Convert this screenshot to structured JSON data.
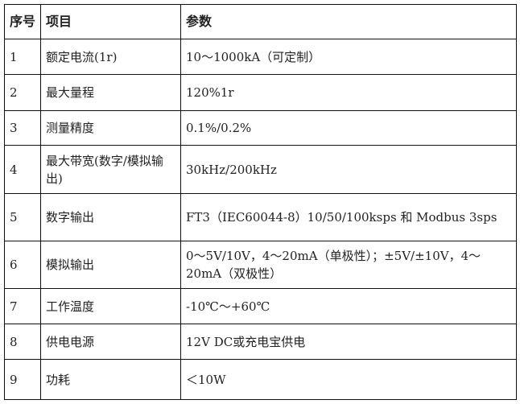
{
  "header": {
    "index": "序号",
    "item": "项目",
    "param": "参数"
  },
  "rows": [
    {
      "index": "1",
      "item": "额定电流(1r)",
      "param": "10～1000kA（可定制）"
    },
    {
      "index": "2",
      "item": "最大量程",
      "param": "120%1r"
    },
    {
      "index": "3",
      "item": "测量精度",
      "param": "0.1%/0.2%"
    },
    {
      "index": "4",
      "item": "最大带宽(数字/模拟输出)",
      "param": "30kHz/200kHz"
    },
    {
      "index": "5",
      "item": "数字输出",
      "param": "FT3（IEC60044-8）10/50/100ksps 和 Modbus 3sps"
    },
    {
      "index": "6",
      "item": "模拟输出",
      "param": "0～5V/10V，4～20mA（单极性）；±5V/±10V，4～20mA（双极性）"
    },
    {
      "index": "7",
      "item": "工作温度",
      "param": "-10℃～+60℃"
    },
    {
      "index": "8",
      "item": "供电电源",
      "param": "12V DC或充电宝供电"
    },
    {
      "index": "9",
      "item": "功耗",
      "param": "＜10W"
    }
  ]
}
